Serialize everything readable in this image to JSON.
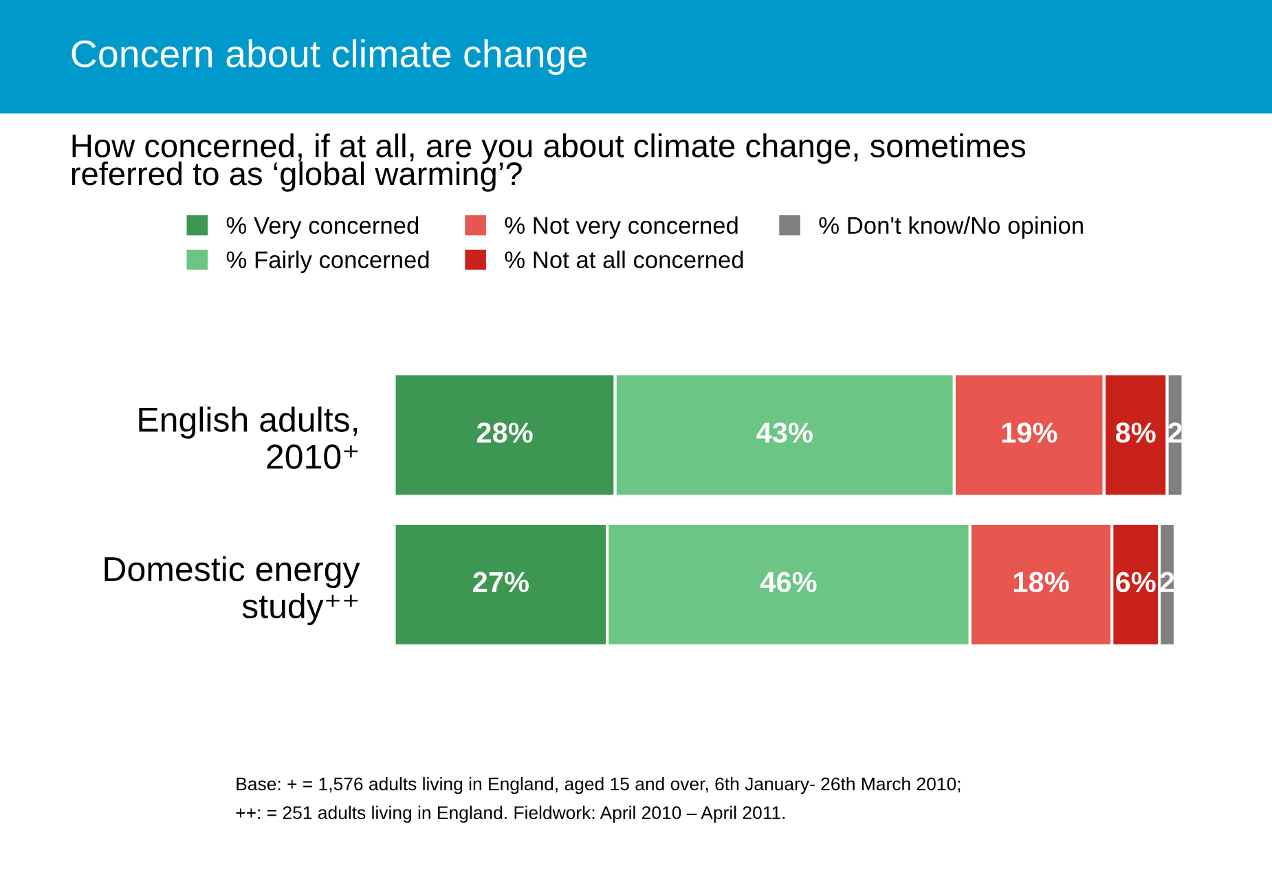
{
  "chart_data": {
    "type": "bar",
    "orientation": "horizontal",
    "stacked": true,
    "title": "Concern about climate change",
    "subtitle": "How concerned, if at all, are you about climate change, sometimes\nreferred to as ‘global warming’?",
    "categories": [
      "English adults,\n2010⁺",
      "Domestic energy\nstudy⁺⁺"
    ],
    "series": [
      {
        "name": "% Very concerned",
        "color": "#3d9651",
        "values": [
          28,
          27
        ],
        "value_labels": [
          "28%",
          "27%"
        ]
      },
      {
        "name": "% Fairly concerned",
        "color": "#6cc585",
        "values": [
          43,
          46
        ],
        "value_labels": [
          "43%",
          "46%"
        ]
      },
      {
        "name": "% Not very concerned",
        "color": "#e8574f",
        "values": [
          19,
          18
        ],
        "value_labels": [
          "19%",
          "18%"
        ]
      },
      {
        "name": "% Not at all concerned",
        "color": "#c9221b",
        "values": [
          8,
          6
        ],
        "value_labels": [
          "8%",
          "6%"
        ]
      },
      {
        "name": "% Don't know/No opinion",
        "color": "#808080",
        "values": [
          2,
          2
        ],
        "value_labels": [
          "2",
          "2"
        ]
      }
    ],
    "legend": "top",
    "tick_labels": "y",
    "grid": false,
    "annotations": [
      "Base: + = 1,576 adults living in England, aged 15 and over, 6th January- 26th March 2010;\n++: = 251 adults living in England. Fieldwork: April 2010 – April 2011."
    ]
  }
}
